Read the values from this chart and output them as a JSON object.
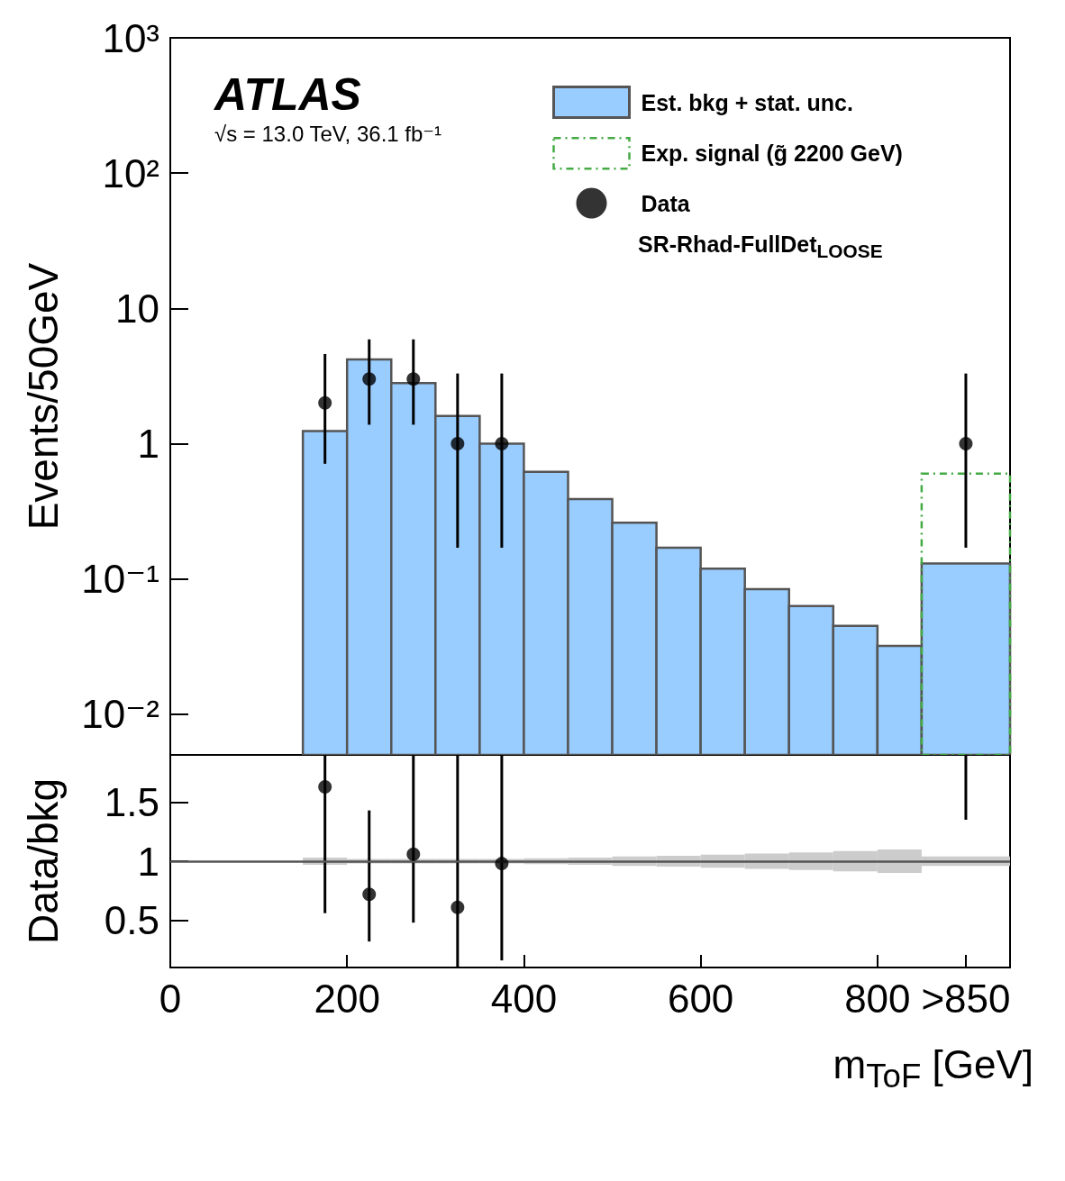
{
  "chart_data": [
    {
      "type": "histogram",
      "ylabel": "Events/50GeV",
      "log": "y",
      "grid": false,
      "legend": "top right",
      "tick_labels": "y",
      "xlim": [
        0,
        950
      ],
      "xticks": [
        0,
        200,
        400,
        600,
        800
      ],
      "ylim": [
        0.005,
        1000
      ],
      "yticks": [
        {
          "value": 0.01,
          "label": "10⁻²"
        },
        {
          "value": 0.1,
          "label": "10⁻¹"
        },
        1,
        10,
        {
          "value": 100,
          "label": "10²"
        },
        {
          "value": 1000,
          "label": "10³"
        }
      ],
      "annotations": [
        "ATLAS",
        "√s = 13.0 TeV, 36.1 fb⁻¹",
        "SR-Rhad-FullDet$_{LOOSE}$"
      ],
      "series": [
        {
          "name": "Est. bkg + stat. unc.",
          "color": "#99ccff",
          "bins": [
            150,
            200,
            250,
            300,
            350,
            400,
            450,
            500,
            550,
            600,
            650,
            700,
            750,
            800,
            850,
            950
          ],
          "values": [
            1.24,
            4.2,
            2.8,
            1.6,
            1.0,
            0.62,
            0.39,
            0.26,
            0.17,
            0.119,
            0.084,
            0.063,
            0.045,
            0.032,
            0.13
          ]
        },
        {
          "type": "histogram",
          "name": "Exp. signal (g̃ 2200 GeV)",
          "color": "#44aa44",
          "line_style": "dashed",
          "bins": [
            850,
            950
          ],
          "values": [
            0.6
          ]
        },
        {
          "type": "scatter",
          "name": "Data",
          "color": "#000000",
          "marker": "circle",
          "x": [
            175,
            225,
            275,
            325,
            375,
            900
          ],
          "values": [
            2,
            3,
            3,
            1,
            1,
            1
          ],
          "errors": [
            [
              0.71,
              4.6
            ],
            [
              1.38,
              5.9
            ],
            [
              1.38,
              5.9
            ],
            [
              0.17,
              3.3
            ],
            [
              0.17,
              3.3
            ],
            [
              0.17,
              3.3
            ]
          ]
        }
      ]
    },
    {
      "type": "scatter",
      "ylabel": "Data/bkg",
      "xlabel": "m$_{ToF}$ [GeV]",
      "grid": false,
      "xlim": [
        0,
        950
      ],
      "xticks": [
        0,
        200,
        400,
        600,
        800,
        {
          "value": 900,
          "label": ">850"
        }
      ],
      "ylim": [
        0.1,
        1.9
      ],
      "yticks": [
        0.5,
        1,
        1.5
      ],
      "ref_lines": [
        {
          "axis": "y",
          "value": 1,
          "color": "#555555"
        }
      ],
      "series": [
        {
          "type": "histogram",
          "color": "#cccccc",
          "bins": [
            150,
            200,
            250,
            300,
            350,
            400,
            450,
            500,
            550,
            600,
            650,
            700,
            750,
            800,
            850,
            950
          ],
          "base": [
            0.97,
            0.98,
            0.98,
            0.98,
            0.98,
            0.975,
            0.97,
            0.96,
            0.955,
            0.945,
            0.935,
            0.925,
            0.915,
            0.9,
            0.96
          ],
          "values": [
            0.06,
            0.04,
            0.04,
            0.04,
            0.04,
            0.05,
            0.06,
            0.08,
            0.09,
            0.11,
            0.13,
            0.15,
            0.17,
            0.2,
            0.08
          ]
        },
        {
          "color": "#000000",
          "marker": "circle",
          "x": [
            175,
            225,
            275,
            325,
            375
          ],
          "values": [
            1.63,
            0.72,
            1.06,
            0.61,
            0.98
          ],
          "errors": [
            [
              0.56,
              1.9
            ],
            [
              0.32,
              1.43
            ],
            [
              0.48,
              1.9
            ],
            [
              0.1,
              1.9
            ],
            [
              0.16,
              1.9
            ]
          ]
        },
        {
          "type": "line",
          "color": "#000000",
          "marker": "none",
          "x": [
            900,
            900
          ],
          "values": [
            1.35,
            1.9
          ]
        }
      ]
    }
  ]
}
